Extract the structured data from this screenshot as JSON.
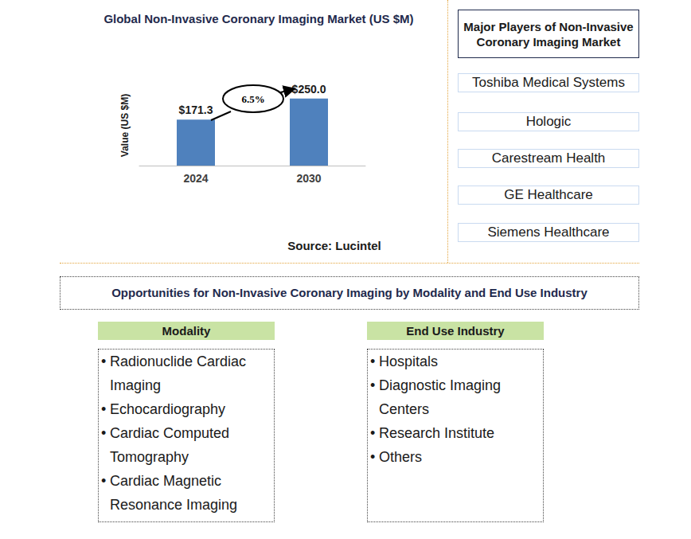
{
  "chart_data": {
    "type": "bar",
    "title": "Global Non-Invasive Coronary Imaging Market (US $M)",
    "y_label": "Value (US $M)",
    "categories": [
      "2024",
      "2030"
    ],
    "values": [
      171.3,
      250.0
    ],
    "value_labels": [
      "$171.3",
      "$250.0"
    ],
    "color": "#4f81bd",
    "ylim": [
      0,
      300
    ],
    "data_labels": true,
    "tick_labels": "x",
    "annotations": [
      "6.5%"
    ],
    "source": "Source: Lucintel"
  },
  "players": {
    "title": "Major Players of Non-Invasive Coronary Imaging Market",
    "items": [
      "Toshiba Medical Systems",
      "Hologic",
      "Carestream Health",
      "GE Healthcare",
      "Siemens Healthcare"
    ]
  },
  "opportunities": {
    "title": "Opportunities for Non-Invasive Coronary Imaging by Modality and End Use Industry",
    "columns": [
      {
        "title": "Modality",
        "items": [
          "Radionuclide Cardiac Imaging",
          "Echocardiography",
          "Cardiac Computed Tomography",
          "Cardiac Magnetic Resonance Imaging"
        ]
      },
      {
        "title": "End Use Industry",
        "items": [
          "Hospitals",
          "Diagnostic Imaging Centers",
          "Research Institute",
          "Others"
        ]
      }
    ]
  }
}
